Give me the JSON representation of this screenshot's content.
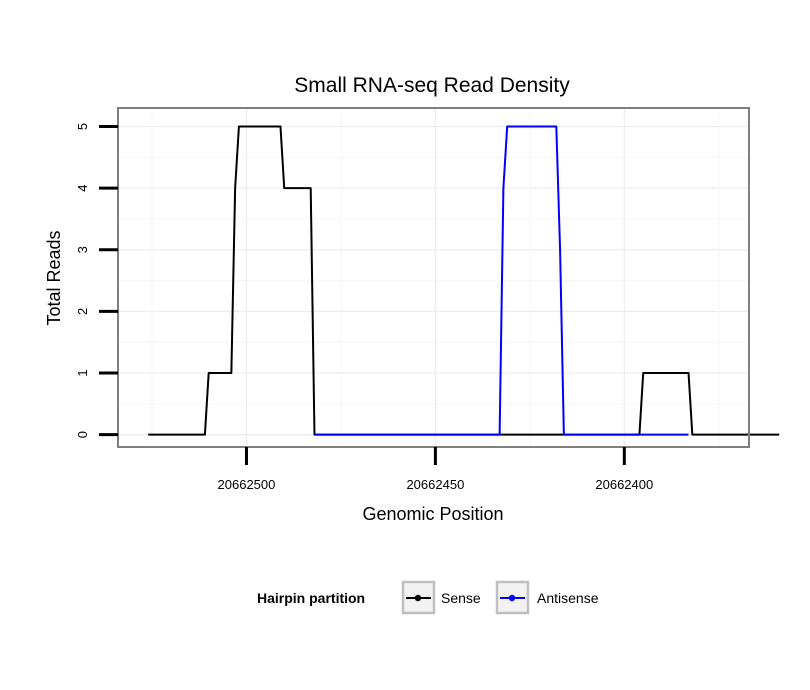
{
  "chart_data": {
    "type": "line",
    "title": "Small RNA-seq Read Density",
    "xlabel": "Genomic Position",
    "ylabel": "Total Reads",
    "x_reversed": true,
    "xlim": [
      20662534,
      20662367
    ],
    "ylim": [
      -0.2,
      5.3
    ],
    "x_ticks": [
      20662500,
      20662450,
      20662400
    ],
    "x_tick_labels": [
      "20662500",
      "20662450",
      "20662400"
    ],
    "y_ticks": [
      0,
      1,
      2,
      3,
      4,
      5
    ],
    "y_tick_labels": [
      "0",
      "1",
      "2",
      "3",
      "4",
      "5"
    ],
    "grid": true,
    "legend": {
      "title": "Hairpin partition",
      "position": "bottom"
    },
    "series": [
      {
        "name": "Sense",
        "color": "#000000",
        "x": [
          20662526,
          20662511,
          20662510,
          20662504,
          20662503,
          20662502,
          20662491,
          20662490,
          20662483,
          20662482,
          20662462,
          20662449,
          20662400,
          20662396,
          20662395,
          20662383,
          20662382,
          20662359
        ],
        "y": [
          0,
          0,
          1,
          1,
          4,
          5,
          5,
          4,
          4,
          0,
          0,
          0,
          0,
          0,
          1,
          1,
          0,
          0
        ]
      },
      {
        "name": "Antisense",
        "color": "#0000ff",
        "x": [
          20662482,
          20662462,
          20662449,
          20662433,
          20662432,
          20662431,
          20662418,
          20662417,
          20662416,
          20662383
        ],
        "y": [
          0,
          0,
          0,
          0,
          4,
          5,
          5,
          3,
          0,
          0
        ]
      }
    ]
  }
}
